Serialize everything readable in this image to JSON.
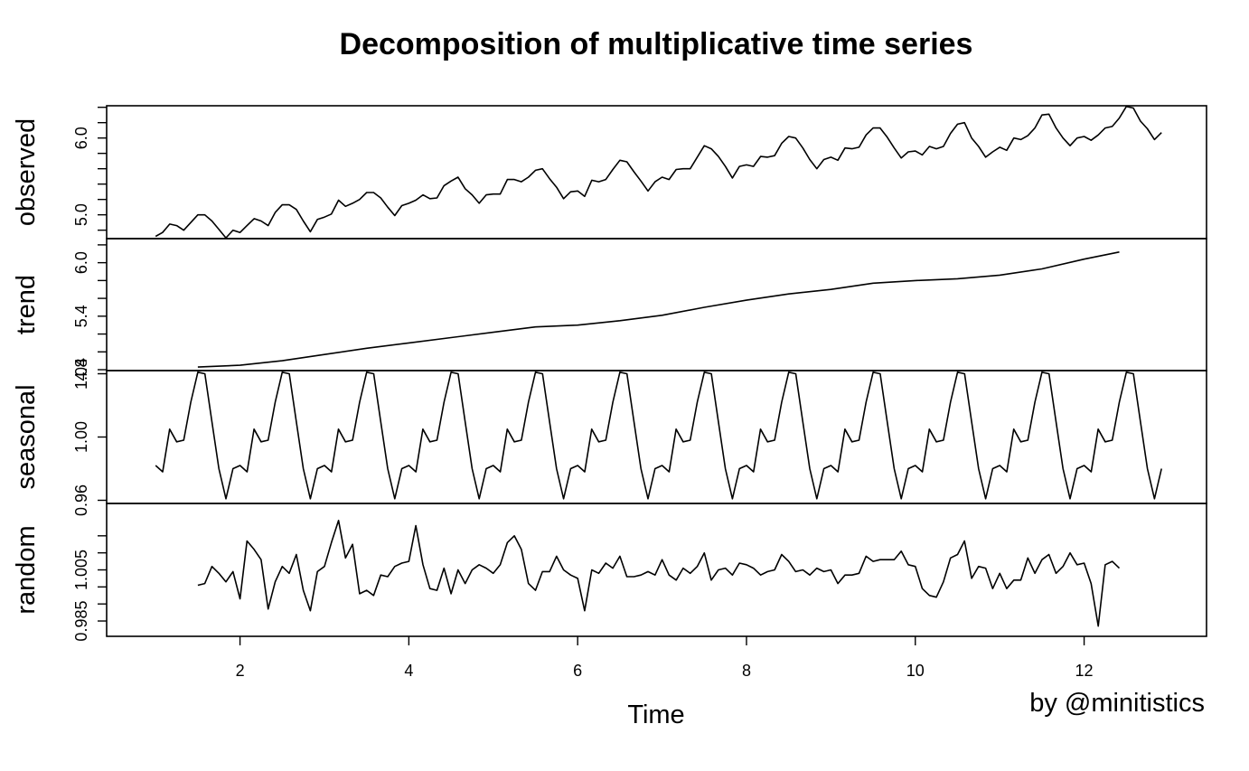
{
  "chart_data": {
    "type": "line",
    "title": "Decomposition of multiplicative time series",
    "xlabel": "Time",
    "credit": "by @minitistics",
    "xlim": [
      0.42,
      13.45
    ],
    "xticks": [
      2,
      4,
      6,
      8,
      10,
      12
    ],
    "xtick_labels": [
      "2",
      "4",
      "6",
      "8",
      "10",
      "12"
    ],
    "panels": [
      {
        "name": "observed",
        "ylabel": "observed",
        "ylim": [
          4.69,
          6.42
        ],
        "yticks": [
          4.8,
          5.0,
          5.2,
          5.4,
          5.6,
          5.8,
          6.0,
          6.2,
          6.4
        ],
        "ytick_labels": [
          "",
          "5.0",
          "",
          "",
          "",
          "",
          "6.0",
          "",
          ""
        ],
        "x": [
          1.0,
          1.083,
          1.167,
          1.25,
          1.333,
          1.417,
          1.5,
          1.583,
          1.667,
          1.75,
          1.833,
          1.917,
          2.0,
          2.083,
          2.167,
          2.25,
          2.333,
          2.417,
          2.5,
          2.583,
          2.667,
          2.75,
          2.833,
          2.917,
          3.0,
          3.083,
          3.167,
          3.25,
          3.333,
          3.417,
          3.5,
          3.583,
          3.667,
          3.75,
          3.833,
          3.917,
          4.0,
          4.083,
          4.167,
          4.25,
          4.333,
          4.417,
          4.5,
          4.583,
          4.667,
          4.75,
          4.833,
          4.917,
          5.0,
          5.083,
          5.167,
          5.25,
          5.333,
          5.417,
          5.5,
          5.583,
          5.667,
          5.75,
          5.833,
          5.917,
          6.0,
          6.083,
          6.167,
          6.25,
          6.333,
          6.417,
          6.5,
          6.583,
          6.667,
          6.75,
          6.833,
          6.917,
          7.0,
          7.083,
          7.167,
          7.25,
          7.333,
          7.417,
          7.5,
          7.583,
          7.667,
          7.75,
          7.833,
          7.917,
          8.0,
          8.083,
          8.167,
          8.25,
          8.333,
          8.417,
          8.5,
          8.583,
          8.667,
          8.75,
          8.833,
          8.917,
          9.0,
          9.083,
          9.167,
          9.25,
          9.333,
          9.417,
          9.5,
          9.583,
          9.667,
          9.75,
          9.833,
          9.917,
          10.0,
          10.083,
          10.167,
          10.25,
          10.333,
          10.417,
          10.5,
          10.583,
          10.667,
          10.75,
          10.833,
          10.917,
          11.0,
          11.083,
          11.167,
          11.25,
          11.333,
          11.417,
          11.5,
          11.583,
          11.667,
          11.75,
          11.833,
          11.917,
          12.0,
          12.083,
          12.167,
          12.25,
          12.333,
          12.417,
          12.5,
          12.583,
          12.667,
          12.75,
          12.833,
          12.917
        ],
        "values": [
          4.72,
          4.77,
          4.88,
          4.86,
          4.8,
          4.9,
          5.0,
          5.0,
          4.92,
          4.81,
          4.7,
          4.8,
          4.77,
          4.86,
          4.95,
          4.92,
          4.86,
          5.03,
          5.13,
          5.13,
          5.07,
          4.92,
          4.78,
          4.94,
          4.97,
          5.01,
          5.19,
          5.11,
          5.15,
          5.2,
          5.29,
          5.29,
          5.22,
          5.1,
          4.99,
          5.12,
          5.15,
          5.19,
          5.26,
          5.21,
          5.22,
          5.38,
          5.44,
          5.49,
          5.34,
          5.26,
          5.15,
          5.26,
          5.27,
          5.27,
          5.46,
          5.46,
          5.43,
          5.49,
          5.58,
          5.6,
          5.47,
          5.36,
          5.21,
          5.3,
          5.31,
          5.24,
          5.45,
          5.43,
          5.46,
          5.59,
          5.71,
          5.69,
          5.56,
          5.44,
          5.31,
          5.43,
          5.49,
          5.46,
          5.59,
          5.6,
          5.6,
          5.75,
          5.9,
          5.86,
          5.76,
          5.63,
          5.48,
          5.63,
          5.65,
          5.63,
          5.76,
          5.75,
          5.77,
          5.93,
          6.02,
          6.0,
          5.87,
          5.72,
          5.6,
          5.72,
          5.75,
          5.71,
          5.87,
          5.86,
          5.88,
          6.04,
          6.13,
          6.13,
          6.01,
          5.87,
          5.74,
          5.82,
          5.83,
          5.78,
          5.89,
          5.86,
          5.89,
          6.06,
          6.18,
          6.2,
          6.0,
          5.89,
          5.75,
          5.82,
          5.88,
          5.84,
          6.0,
          5.98,
          6.03,
          6.13,
          6.3,
          6.31,
          6.13,
          6.0,
          5.9,
          6.0,
          6.02,
          5.97,
          6.04,
          6.13,
          6.15,
          6.26,
          6.41,
          6.39,
          6.22,
          6.12,
          5.98,
          6.07
        ]
      },
      {
        "name": "trend",
        "ylabel": "trend",
        "ylim": [
          4.79,
          6.27
        ],
        "yticks": [
          4.8,
          5.0,
          5.2,
          5.4,
          5.6,
          5.8,
          6.0,
          6.2
        ],
        "ytick_labels": [
          "4.8",
          "",
          "",
          "5.4",
          "",
          "",
          "6.0",
          ""
        ],
        "x": [
          1.5,
          2.0,
          2.5,
          3.0,
          3.5,
          4.0,
          4.5,
          5.0,
          5.5,
          6.0,
          6.5,
          7.0,
          7.5,
          8.0,
          8.5,
          9.0,
          9.5,
          10.0,
          10.5,
          11.0,
          11.5,
          12.0,
          12.417
        ],
        "values": [
          4.83,
          4.85,
          4.9,
          4.97,
          5.04,
          5.1,
          5.16,
          5.22,
          5.28,
          5.3,
          5.35,
          5.41,
          5.5,
          5.58,
          5.65,
          5.7,
          5.77,
          5.8,
          5.82,
          5.86,
          5.93,
          6.04,
          6.12
        ]
      },
      {
        "name": "seasonal",
        "ylabel": "seasonal",
        "ylim": [
          0.958,
          1.042
        ],
        "yticks": [
          0.96,
          1.0,
          1.04
        ],
        "ytick_labels": [
          "0.96",
          "1.00",
          "1.04"
        ],
        "pattern_start": 1.0,
        "pattern_end": 12.917,
        "monthly_pattern": [
          0.982,
          0.978,
          1.005,
          0.997,
          0.998,
          1.022,
          1.041,
          1.04,
          1.01,
          0.98,
          0.961,
          0.98
        ],
        "pattern_note": "repeats every year from the first observation"
      },
      {
        "name": "random",
        "ylabel": "random",
        "ylim": [
          0.9805,
          1.0195
        ],
        "yticks": [
          0.985,
          0.99,
          0.995,
          1.0,
          1.005,
          1.01
        ],
        "ytick_labels": [
          "0.985",
          "",
          "",
          "1.005",
          "",
          ""
        ],
        "x": [
          1.5,
          1.583,
          1.667,
          1.75,
          1.833,
          1.917,
          2.0,
          2.083,
          2.167,
          2.25,
          2.333,
          2.417,
          2.5,
          2.583,
          2.667,
          2.75,
          2.833,
          2.917,
          3.0,
          3.083,
          3.167,
          3.25,
          3.333,
          3.417,
          3.5,
          3.583,
          3.667,
          3.75,
          3.833,
          3.917,
          4.0,
          4.083,
          4.167,
          4.25,
          4.333,
          4.417,
          4.5,
          4.583,
          4.667,
          4.75,
          4.833,
          4.917,
          5.0,
          5.083,
          5.167,
          5.25,
          5.333,
          5.417,
          5.5,
          5.583,
          5.667,
          5.75,
          5.833,
          5.917,
          6.0,
          6.083,
          6.167,
          6.25,
          6.333,
          6.417,
          6.5,
          6.583,
          6.667,
          6.75,
          6.833,
          6.917,
          7.0,
          7.083,
          7.167,
          7.25,
          7.333,
          7.417,
          7.5,
          7.583,
          7.667,
          7.75,
          7.833,
          7.917,
          8.0,
          8.083,
          8.167,
          8.25,
          8.333,
          8.417,
          8.5,
          8.583,
          8.667,
          8.75,
          8.833,
          8.917,
          9.0,
          9.083,
          9.167,
          9.25,
          9.333,
          9.417,
          9.5,
          9.583,
          9.667,
          9.75,
          9.833,
          9.917,
          10.0,
          10.083,
          10.167,
          10.25,
          10.333,
          10.417,
          10.5,
          10.583,
          10.667,
          10.75,
          10.833,
          10.917,
          11.0,
          11.083,
          11.167,
          11.25,
          11.333,
          11.417,
          11.5,
          11.583,
          11.667,
          11.75,
          11.833,
          11.917,
          12.0,
          12.083,
          12.167,
          12.25,
          12.333,
          12.417
        ],
        "values": [
          0.9955,
          0.996,
          1.001,
          0.999,
          0.9965,
          0.9995,
          0.9915,
          1.0085,
          1.006,
          1.003,
          0.9885,
          0.9965,
          1.001,
          0.999,
          1.0045,
          0.994,
          0.988,
          0.9995,
          1.001,
          1.008,
          1.0145,
          1.0035,
          1.0075,
          0.993,
          0.994,
          0.9925,
          0.9985,
          0.998,
          1.001,
          1.002,
          1.0025,
          1.013,
          1.0015,
          0.9945,
          0.994,
          1.0005,
          0.993,
          1.0,
          0.996,
          1.0,
          1.0015,
          1.0005,
          0.999,
          1.0015,
          1.008,
          1.01,
          1.006,
          0.996,
          0.994,
          0.9995,
          0.9995,
          1.004,
          1.0,
          0.9985,
          0.9975,
          0.988,
          1.0,
          0.999,
          1.002,
          1.0005,
          1.004,
          0.998,
          0.998,
          0.9985,
          0.9995,
          0.9985,
          1.003,
          0.9985,
          0.997,
          1.0005,
          0.999,
          1.001,
          1.005,
          0.997,
          1.0,
          1.0005,
          0.9985,
          1.002,
          1.0015,
          1.0005,
          0.9985,
          0.9995,
          1.0,
          1.0045,
          1.0025,
          0.9995,
          1.0,
          0.9985,
          1.0005,
          0.9995,
          1.0,
          0.996,
          0.9985,
          0.9985,
          0.999,
          1.004,
          1.0025,
          1.003,
          1.003,
          1.003,
          1.0055,
          1.0015,
          1.001,
          0.9945,
          0.9925,
          0.992,
          0.9965,
          1.0035,
          1.0045,
          1.0085,
          0.9975,
          1.001,
          1.0005,
          0.9945,
          0.999,
          0.9945,
          0.997,
          0.997,
          1.0035,
          0.999,
          1.003,
          1.0045,
          0.999,
          1.001,
          1.005,
          1.0015,
          1.002,
          0.996,
          0.9835,
          1.0015,
          1.0025,
          1.0005
        ]
      }
    ]
  }
}
